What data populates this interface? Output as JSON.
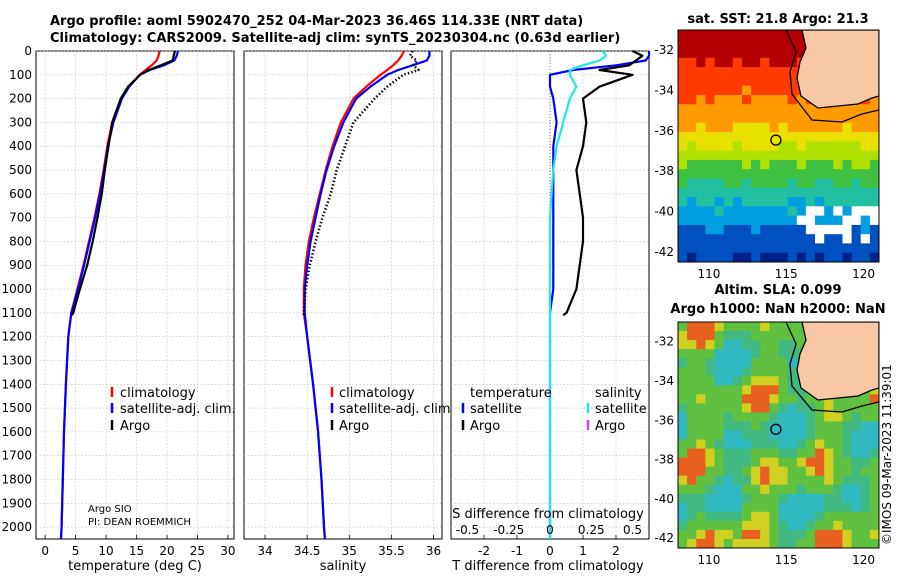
{
  "title_line1": "Argo profile: aoml 5902470_252 04-Mar-2023 36.46S 114.33E (NRT data)",
  "title_line2": "Climatology: CARS2009. Satellite-adj clim: synTS_20230304.nc (0.63d earlier)",
  "watermark": "©IMOS 09-Mar-2023 11:39:01",
  "colors": {
    "climatology": "#ff0000",
    "satellite": "#0000ff",
    "argo": "#000000",
    "sal_satellite": "#22e6e6",
    "sal_argo": "#e040e0"
  },
  "chart_data": [
    {
      "type": "line",
      "name": "temperature",
      "xlabel": "temperature (deg C)",
      "xlim": [
        -1.5,
        31
      ],
      "xticks": [
        0,
        5,
        10,
        15,
        20,
        25,
        30
      ],
      "ylim": [
        0,
        2050
      ],
      "yticks": [
        0,
        100,
        200,
        300,
        400,
        500,
        600,
        700,
        800,
        900,
        1000,
        1100,
        1200,
        1300,
        1400,
        1500,
        1600,
        1700,
        1800,
        1900,
        2000
      ],
      "legend": [
        "climatology",
        "satellite-adj. clim.",
        "Argo"
      ],
      "note_lines": [
        "Argo SIO",
        "PI: DEAN ROEMMICH"
      ],
      "series": [
        {
          "name": "climatology",
          "depth": [
            0,
            20,
            40,
            60,
            80,
            100,
            150,
            200,
            300,
            400,
            500,
            600,
            700,
            800,
            900,
            1000,
            1100,
            1200,
            1400,
            1600,
            1800,
            2000,
            2050
          ],
          "values": [
            18.8,
            18.6,
            18.3,
            17.5,
            16.5,
            15.5,
            13.8,
            12.5,
            11.0,
            10.2,
            9.6,
            8.9,
            8.1,
            7.2,
            6.3,
            5.3,
            4.3,
            3.8,
            3.4,
            3.1,
            2.9,
            2.7,
            2.6
          ]
        },
        {
          "name": "satellite-adj. clim.",
          "depth": [
            0,
            20,
            40,
            60,
            80,
            100,
            150,
            200,
            300,
            400,
            500,
            600,
            700,
            800,
            900,
            1000,
            1100,
            1200,
            1400,
            1600,
            1800,
            2000,
            2050
          ],
          "values": [
            21.8,
            21.6,
            21.2,
            19.5,
            17.2,
            15.5,
            13.8,
            12.6,
            11.2,
            10.3,
            9.7,
            9.0,
            8.2,
            7.3,
            6.4,
            5.4,
            4.3,
            3.8,
            3.4,
            3.1,
            2.9,
            2.7,
            2.6
          ]
        },
        {
          "name": "Argo",
          "depth": [
            0,
            20,
            40,
            60,
            80,
            100,
            150,
            200,
            300,
            400,
            500,
            600,
            700,
            800,
            900,
            1000,
            1100,
            1110
          ],
          "values": [
            21.3,
            21.1,
            20.9,
            19.0,
            17.0,
            15.6,
            13.6,
            12.4,
            11.0,
            10.4,
            9.8,
            9.3,
            8.6,
            7.8,
            6.9,
            5.7,
            4.6,
            4.4
          ]
        }
      ]
    },
    {
      "type": "line",
      "name": "salinity",
      "xlabel": "salinity",
      "xlim": [
        33.75,
        36.1
      ],
      "xticks": [
        34,
        34.5,
        35,
        35.5,
        36
      ],
      "xtick_labels": [
        "34",
        "34.5",
        "35",
        "35.5",
        "36"
      ],
      "ylim": [
        0,
        2050
      ],
      "legend": [
        "climatology",
        "satellite-adj. clim.",
        "Argo"
      ],
      "series": [
        {
          "name": "climatology",
          "depth": [
            0,
            20,
            40,
            60,
            80,
            100,
            150,
            200,
            300,
            400,
            500,
            600,
            700,
            800,
            900,
            1000,
            1100,
            1200,
            1400,
            1600,
            1800,
            2000,
            2050
          ],
          "values": [
            35.65,
            35.62,
            35.58,
            35.52,
            35.45,
            35.37,
            35.2,
            35.05,
            34.9,
            34.8,
            34.72,
            34.65,
            34.58,
            34.52,
            34.48,
            34.46,
            34.46,
            34.5,
            34.57,
            34.63,
            34.67,
            34.7,
            34.71
          ]
        },
        {
          "name": "satellite-adj. clim.",
          "depth": [
            0,
            20,
            40,
            60,
            80,
            100,
            150,
            200,
            300,
            400,
            500,
            600,
            700,
            800,
            900,
            1000,
            1100,
            1200,
            1400,
            1600,
            1800,
            2000,
            2050
          ],
          "values": [
            35.95,
            35.95,
            35.92,
            35.75,
            35.58,
            35.45,
            35.25,
            35.08,
            34.93,
            34.82,
            34.73,
            34.66,
            34.6,
            34.54,
            34.5,
            34.47,
            34.47,
            34.5,
            34.57,
            34.63,
            34.67,
            34.7,
            34.71
          ]
        },
        {
          "name": "Argo",
          "depth": [
            0,
            20,
            40,
            60,
            80,
            100,
            150,
            200,
            300,
            400,
            500,
            600,
            700,
            800,
            900,
            1000,
            1100,
            1110
          ],
          "values": [
            35.75,
            35.72,
            35.8,
            35.76,
            35.82,
            35.64,
            35.45,
            35.3,
            35.05,
            34.95,
            34.85,
            34.78,
            34.68,
            34.6,
            34.53,
            34.48,
            34.46,
            34.46
          ]
        }
      ]
    },
    {
      "type": "line",
      "name": "difference",
      "xlabel": "T difference from climatology",
      "x2label": "S difference from climatology",
      "xlim": [
        -3,
        3
      ],
      "xticks": [
        -2,
        -1,
        0,
        1,
        2
      ],
      "x2ticks": [
        -0.5,
        -0.25,
        0,
        0.25,
        0.5
      ],
      "x2tick_labels": [
        "-0.5",
        "-0.25",
        "0",
        "0.25",
        "0.5"
      ],
      "ylim": [
        0,
        2050
      ],
      "legend_temperature": {
        "title": "temperature",
        "items": [
          "satellite",
          "Argo"
        ]
      },
      "legend_salinity": {
        "title": "salinity",
        "items": [
          "satellite",
          "Argo"
        ]
      },
      "series": [
        {
          "name": "T satellite",
          "depth": [
            0,
            20,
            40,
            60,
            80,
            100,
            150,
            200,
            300,
            400,
            500,
            600,
            700,
            800,
            900,
            1000,
            1100,
            1200,
            1400,
            1600,
            1800,
            2000,
            2050
          ],
          "values": [
            3.0,
            3.0,
            2.9,
            2.0,
            0.7,
            0.0,
            0.0,
            0.1,
            0.2,
            0.1,
            0.1,
            0.1,
            0.1,
            0.1,
            0.1,
            0.1,
            0.0,
            0.0,
            0.0,
            0.0,
            0.0,
            0.0,
            0.0
          ]
        },
        {
          "name": "T Argo",
          "depth": [
            0,
            20,
            40,
            60,
            80,
            100,
            150,
            200,
            300,
            400,
            500,
            600,
            700,
            800,
            900,
            1000,
            1100,
            1110
          ],
          "values": [
            2.5,
            2.8,
            2.6,
            2.4,
            1.5,
            2.5,
            1.5,
            1.0,
            1.1,
            1.0,
            0.8,
            0.9,
            1.0,
            1.0,
            0.9,
            0.8,
            0.5,
            0.4
          ]
        },
        {
          "name": "S satellite",
          "depth": [
            0,
            20,
            40,
            60,
            80,
            100,
            150,
            200,
            300,
            400,
            500,
            600,
            700,
            800,
            900,
            1000,
            1100,
            1200,
            1400,
            1600,
            1800,
            2000,
            2050
          ],
          "values": [
            1.6,
            1.7,
            1.5,
            1.0,
            0.6,
            0.6,
            0.8,
            0.6,
            0.4,
            0.2,
            0.1,
            0.05,
            0.0,
            0.0,
            0.0,
            0.0,
            0.0,
            0.0,
            0.0,
            0.0,
            0.0,
            0.0,
            0.0
          ]
        }
      ]
    },
    {
      "type": "heatmap",
      "name": "sst_map",
      "title": "sat. SST: 21.8 Argo: 21.3",
      "xticks": [
        110,
        115,
        120
      ],
      "yticks": [
        -32,
        -34,
        -36,
        -38,
        -40,
        -42
      ],
      "xlim": [
        108,
        121
      ],
      "ylim": [
        -42.5,
        -31
      ],
      "argo_position": [
        114.33,
        -36.46
      ]
    },
    {
      "type": "heatmap",
      "name": "sla_map",
      "title_line1": "Altim. SLA: 0.099",
      "title_line2": "Argo h1000: NaN h2000: NaN",
      "xticks": [
        110,
        115,
        120
      ],
      "yticks": [
        -32,
        -34,
        -36,
        -38,
        -40,
        -42
      ],
      "xlim": [
        108,
        121
      ],
      "ylim": [
        -42.5,
        -31
      ],
      "argo_position": [
        114.33,
        -36.46
      ]
    }
  ]
}
